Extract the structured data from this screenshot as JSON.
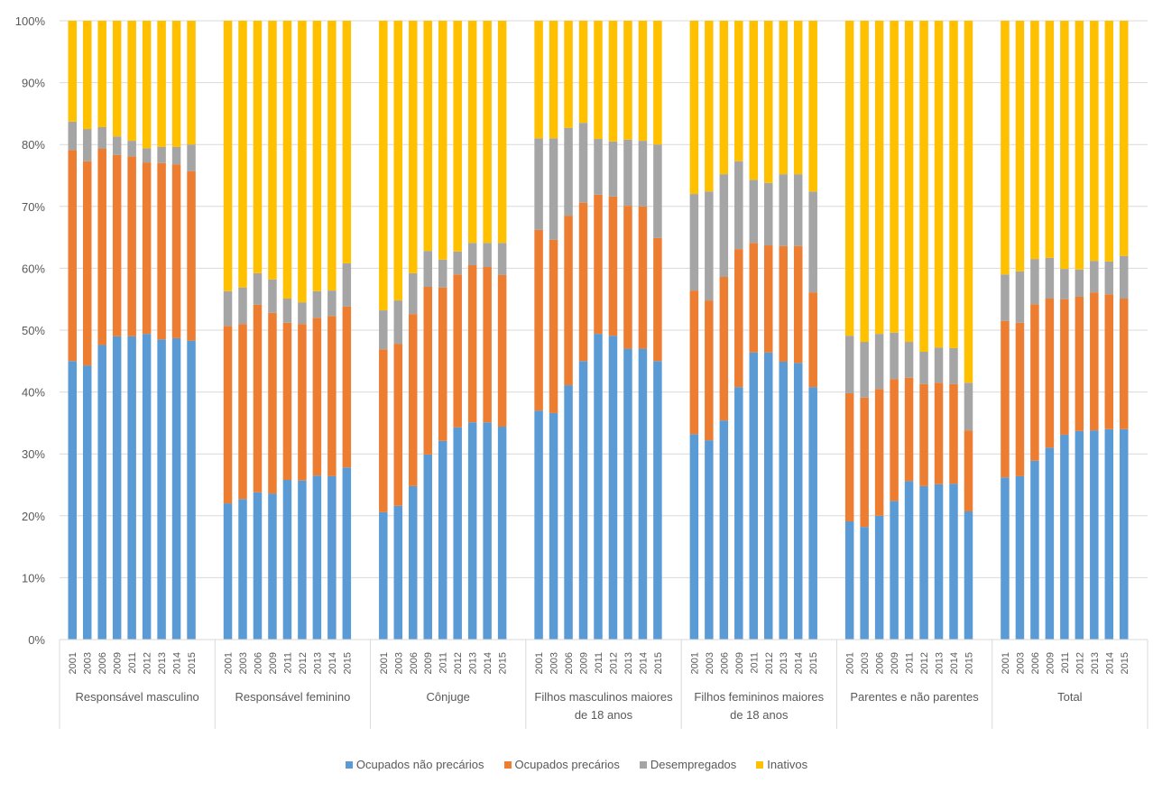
{
  "chart_data": {
    "type": "bar",
    "stacked": true,
    "percent_stacked": true,
    "title": "",
    "xlabel": "",
    "ylabel": "",
    "ylim": [
      0,
      100
    ],
    "yticks": [
      "0%",
      "10%",
      "20%",
      "30%",
      "40%",
      "50%",
      "60%",
      "70%",
      "80%",
      "90%",
      "100%"
    ],
    "grid": true,
    "legend_position": "bottom",
    "years": [
      "2001",
      "2003",
      "2006",
      "2009",
      "2011",
      "2012",
      "2013",
      "2014",
      "2015"
    ],
    "groups": [
      {
        "label": [
          "Responsável masculino"
        ]
      },
      {
        "label": [
          "Responsável feminino"
        ]
      },
      {
        "label": [
          "Cônjuge"
        ]
      },
      {
        "label": [
          "Filhos masculinos maiores",
          "de 18 anos"
        ]
      },
      {
        "label": [
          "Filhos femininos maiores",
          "de 18 anos"
        ]
      },
      {
        "label": [
          "Parentes e não parentes"
        ]
      },
      {
        "label": [
          "Total"
        ]
      }
    ],
    "series": [
      {
        "name": "Ocupados não precários",
        "color": "#5B9BD5",
        "values": [
          [
            45.0,
            44.3,
            47.6,
            49.0,
            49.0,
            49.4,
            48.5,
            48.7,
            48.3
          ],
          [
            22.0,
            22.7,
            23.8,
            23.6,
            25.8,
            25.7,
            26.5,
            26.4,
            27.8
          ],
          [
            20.6,
            21.6,
            24.8,
            29.9,
            32.1,
            34.3,
            35.1,
            35.1,
            34.4
          ],
          [
            37.0,
            36.6,
            41.1,
            45.0,
            49.4,
            49.1,
            47.0,
            47.0,
            45.0
          ],
          [
            33.2,
            32.2,
            35.4,
            40.8,
            46.4,
            46.4,
            44.9,
            44.7,
            40.8
          ],
          [
            19.1,
            18.2,
            20.0,
            22.4,
            25.6,
            24.8,
            25.1,
            25.2,
            20.7
          ],
          [
            26.2,
            26.4,
            28.9,
            31.0,
            33.1,
            33.7,
            33.8,
            34.0,
            34.0
          ]
        ]
      },
      {
        "name": "Ocupados precários",
        "color": "#ED7D31",
        "values": [
          [
            34.1,
            33.0,
            31.7,
            29.3,
            29.1,
            27.7,
            28.5,
            28.1,
            27.4
          ],
          [
            28.7,
            28.3,
            30.3,
            29.2,
            25.4,
            25.3,
            25.5,
            25.9,
            26.0
          ],
          [
            26.3,
            26.2,
            27.8,
            27.1,
            24.8,
            24.7,
            25.4,
            25.1,
            24.5
          ],
          [
            29.2,
            28.0,
            27.4,
            25.6,
            22.5,
            22.5,
            23.1,
            23.0,
            19.9
          ],
          [
            23.2,
            22.6,
            23.2,
            22.3,
            17.7,
            17.3,
            18.7,
            18.9,
            15.3
          ],
          [
            20.7,
            20.9,
            20.5,
            19.7,
            16.7,
            16.5,
            16.4,
            16.1,
            13.1
          ],
          [
            25.3,
            24.8,
            25.3,
            24.1,
            21.9,
            21.7,
            22.3,
            21.8,
            21.1
          ]
        ]
      },
      {
        "name": "Desempregados",
        "color": "#A5A5A5",
        "values": [
          [
            4.6,
            5.2,
            3.5,
            3.0,
            2.5,
            2.3,
            2.6,
            2.8,
            4.3
          ],
          [
            5.6,
            5.9,
            5.1,
            5.4,
            3.9,
            3.5,
            4.3,
            4.1,
            7.0
          ],
          [
            6.3,
            7.0,
            6.6,
            5.8,
            4.5,
            3.7,
            3.6,
            3.9,
            5.2
          ],
          [
            14.8,
            16.4,
            14.2,
            12.9,
            9.0,
            8.9,
            10.7,
            10.6,
            15.1
          ],
          [
            15.6,
            17.6,
            16.6,
            14.2,
            10.2,
            10.1,
            11.6,
            11.6,
            16.3
          ],
          [
            9.3,
            9.0,
            8.9,
            7.5,
            5.8,
            5.2,
            5.7,
            5.8,
            7.7
          ],
          [
            7.5,
            8.3,
            7.3,
            6.6,
            4.9,
            4.4,
            5.1,
            5.3,
            6.9
          ]
        ]
      },
      {
        "name": "Inativos",
        "color": "#FFC000",
        "values": [
          [
            16.3,
            17.5,
            17.2,
            18.7,
            19.4,
            20.6,
            20.4,
            20.4,
            20.0
          ],
          [
            43.7,
            43.1,
            40.8,
            41.8,
            44.9,
            45.5,
            43.7,
            43.6,
            39.2
          ],
          [
            46.8,
            45.2,
            40.8,
            37.2,
            38.6,
            37.3,
            35.9,
            35.9,
            35.9
          ],
          [
            19.0,
            19.0,
            17.3,
            16.5,
            19.1,
            19.5,
            19.2,
            19.4,
            20.0
          ],
          [
            28.0,
            27.6,
            24.8,
            22.7,
            25.7,
            26.2,
            24.8,
            24.8,
            27.6
          ],
          [
            50.9,
            51.9,
            50.6,
            50.4,
            51.9,
            53.5,
            52.8,
            52.9,
            58.5
          ],
          [
            41.0,
            40.5,
            38.5,
            38.3,
            40.1,
            40.2,
            38.8,
            38.9,
            38.0
          ]
        ]
      }
    ]
  }
}
